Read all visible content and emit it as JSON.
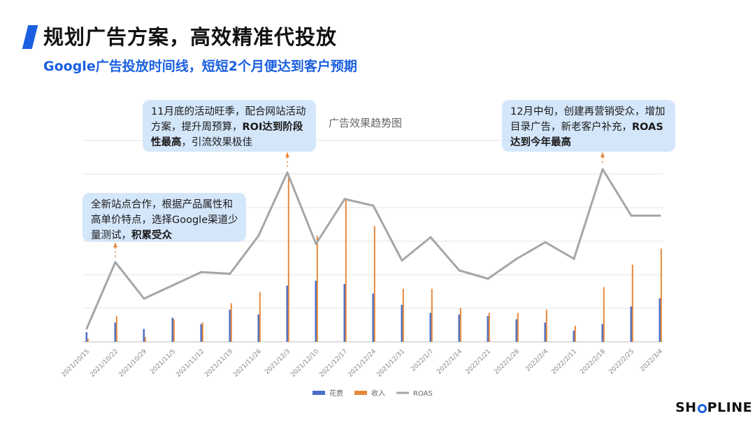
{
  "header": {
    "title": "规划广告方案，高效精准代投放",
    "subtitle": "Google广告投放时间线，短短2个月便达到客户预期"
  },
  "callouts": [
    {
      "parts": [
        {
          "text": "全新站点合作，根据产品属性和高单价特点，选择Google渠道少量测试，",
          "bold": false
        },
        {
          "text": "积累受众",
          "bold": true
        }
      ]
    },
    {
      "parts": [
        {
          "text": "11月底的活动旺季，配合网站活动方案，提升周预算，",
          "bold": false
        },
        {
          "text": "ROI达到阶段性最高",
          "bold": true
        },
        {
          "text": "，引流效果极佳",
          "bold": false
        }
      ]
    },
    {
      "parts": [
        {
          "text": "12月中旬，创建再营销受众，增加目录广告，新老客户补充，",
          "bold": false
        },
        {
          "text": "ROAS达到今年最高",
          "bold": true
        }
      ]
    }
  ],
  "logo": {
    "text": "SHOPLINE"
  },
  "colors": {
    "accent": "#1a5fe0",
    "spend": "#4a6fc7",
    "revenue": "#e6883c",
    "roas": "#a6a6a6",
    "callout_bg": "#d4e6fa"
  },
  "chart_data": {
    "type": "bar+line",
    "title": "广告效果趋势图",
    "categories": [
      "2021/10/15",
      "2021/10/22",
      "2021/10/29",
      "2021/11/5",
      "2021/11/12",
      "2021/11/19",
      "2021/11/26",
      "2021/12/3",
      "2021/12/10",
      "2021/12/17",
      "2021/12/24",
      "2021/12/31",
      "2022/1/7",
      "2022/1/14",
      "2022/1/21",
      "2022/1/28",
      "2022/2/4",
      "2022/2/11",
      "2022/2/18",
      "2022/2/25",
      "2022/3/4"
    ],
    "series": [
      {
        "name": "花费",
        "type": "bar",
        "values": [
          0.6,
          1.2,
          0.8,
          1.5,
          1.1,
          2.0,
          1.7,
          3.5,
          3.8,
          3.6,
          3.0,
          2.3,
          1.8,
          1.7,
          1.6,
          1.4,
          1.2,
          0.7,
          1.1,
          2.2,
          2.7
        ]
      },
      {
        "name": "收入",
        "type": "bar",
        "values": [
          0.2,
          1.6,
          0.3,
          1.4,
          1.2,
          2.4,
          3.1,
          10.3,
          6.6,
          8.8,
          7.2,
          3.3,
          3.3,
          2.1,
          1.8,
          1.8,
          2.0,
          1.0,
          3.4,
          4.8,
          5.8
        ]
      },
      {
        "name": "ROAS",
        "type": "line",
        "values": [
          0.4,
          2.4,
          1.3,
          1.7,
          2.1,
          2.05,
          3.2,
          5.1,
          2.95,
          4.3,
          4.1,
          2.45,
          3.15,
          2.15,
          1.9,
          2.5,
          3.0,
          2.5,
          5.2,
          3.8,
          3.8
        ]
      }
    ],
    "legend_position": "bottom",
    "grid": true
  }
}
